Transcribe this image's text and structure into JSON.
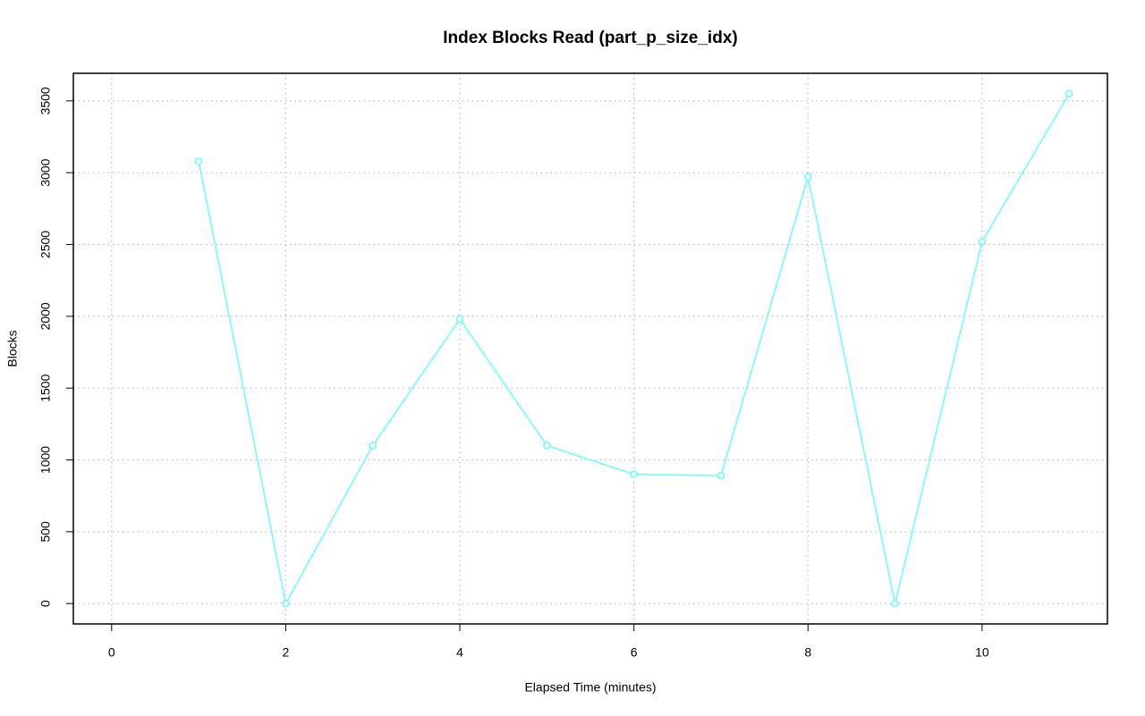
{
  "chart_data": {
    "type": "line",
    "title": "Index Blocks Read (part_p_size_idx)",
    "x_label": "Elapsed Time (minutes)",
    "y_label": "Blocks",
    "x": [
      1,
      2,
      3,
      4,
      5,
      6,
      7,
      8,
      9,
      10,
      11
    ],
    "values": [
      3080,
      0,
      1100,
      1980,
      1100,
      900,
      890,
      2970,
      0,
      2520,
      3550
    ],
    "color": "#66ffff",
    "xlim": [
      -0.44,
      11.44
    ],
    "xticks": [
      0,
      2,
      4,
      6,
      8,
      10
    ],
    "ylim": [
      -142,
      3692
    ],
    "yticks": [
      0,
      500,
      1000,
      1500,
      2000,
      2500,
      3000,
      3500
    ],
    "grid": true
  }
}
